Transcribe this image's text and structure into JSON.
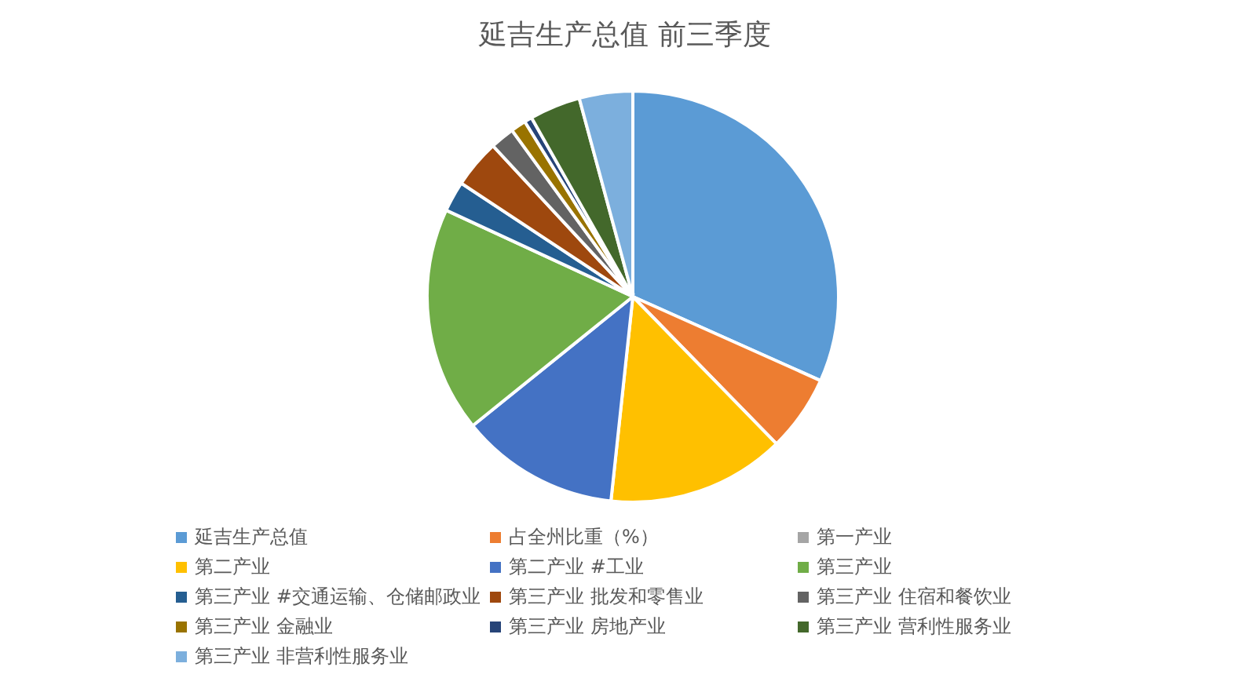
{
  "chart_data": {
    "type": "pie",
    "title": "延吉生产总值 前三季度",
    "categories": [
      "延吉生产总值",
      "占全州比重（%）",
      "第一产业",
      "第二产业",
      "第二产业 #工业",
      "第三产业",
      "第三产业 #交通运输、仓储邮政业",
      "第三产业 批发和零售业",
      "第三产业 住宿和餐饮业",
      "第三产业 金融业",
      "第三产业 房地产业",
      "第三产业 营利性服务业",
      "第三产业 非营利性服务业"
    ],
    "values": [
      31.7,
      6.0,
      0,
      14.0,
      12.5,
      17.7,
      2.4,
      3.8,
      1.9,
      1.2,
      0.6,
      4.0,
      4.2
    ],
    "colors": [
      "#5b9bd5",
      "#ed7d31",
      "#a5a5a5",
      "#ffc000",
      "#4472c4",
      "#70ad47",
      "#255e91",
      "#9e480e",
      "#636363",
      "#997300",
      "#264478",
      "#43682b",
      "#7cafdd"
    ],
    "legend": "bottom"
  }
}
